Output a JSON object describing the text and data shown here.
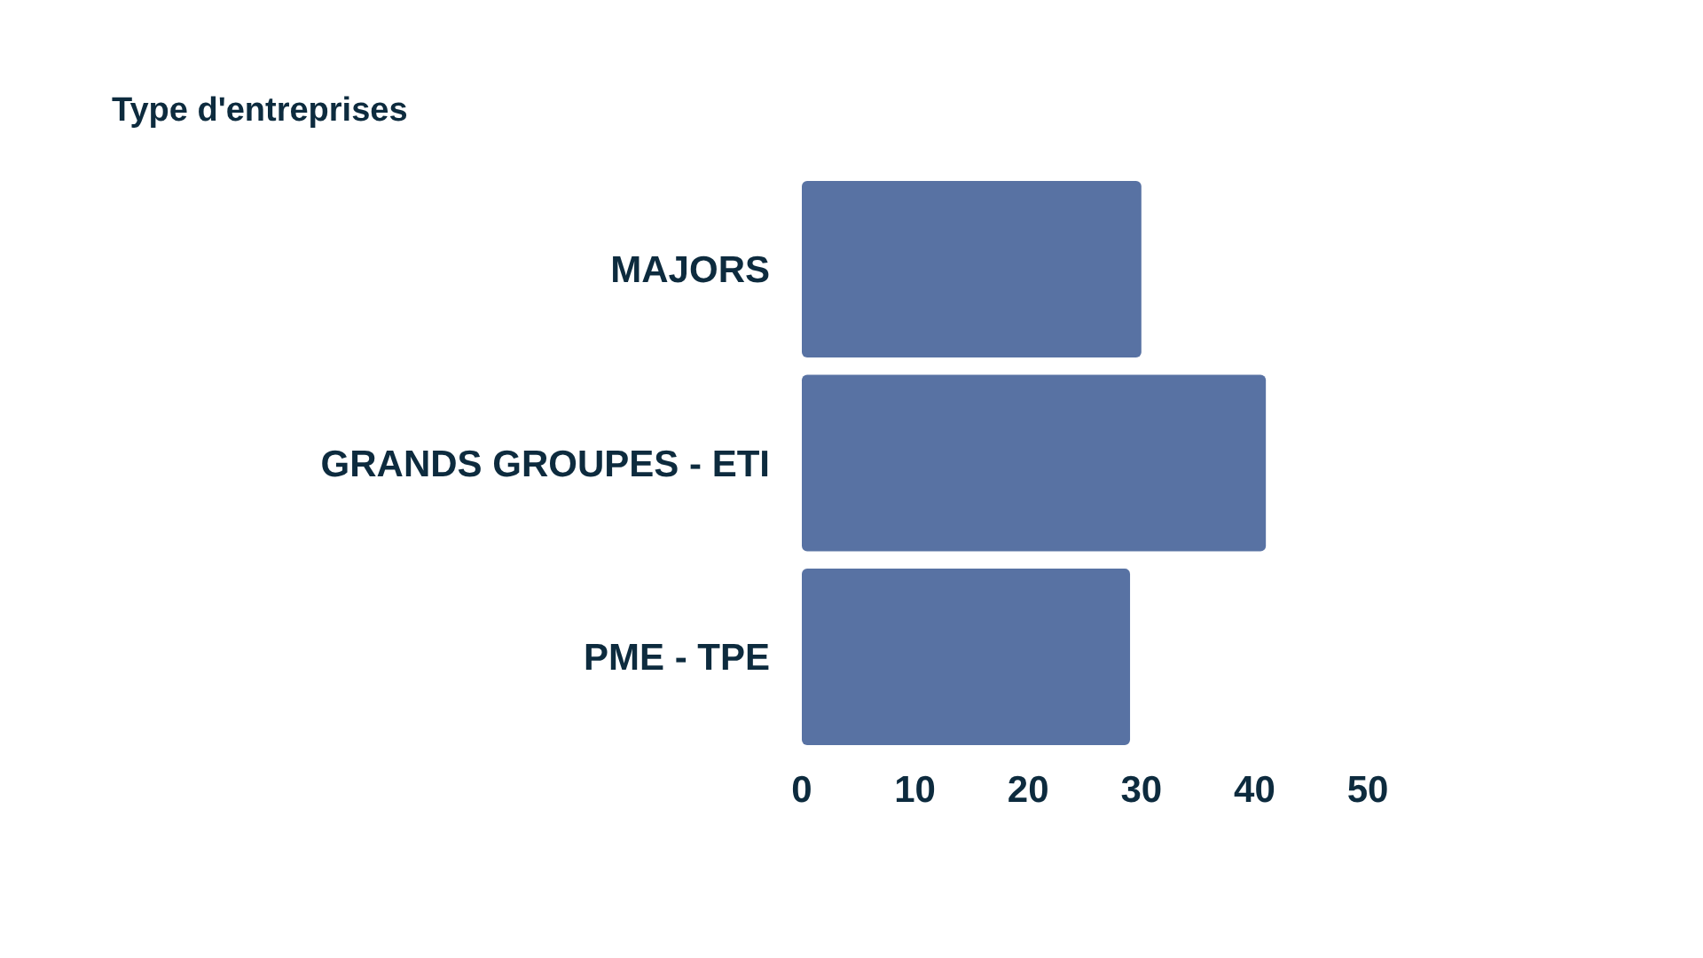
{
  "chart_data": {
    "type": "bar",
    "orientation": "horizontal",
    "title": "Type d'entreprises",
    "categories": [
      "MAJORS",
      "GRANDS GROUPES - ETI",
      "PME - TPE"
    ],
    "values": [
      30,
      41,
      29
    ],
    "color": "#5872a3",
    "xlim": [
      0,
      50
    ],
    "xticks": [
      0,
      10,
      20,
      30,
      40,
      50
    ],
    "grid": false
  }
}
